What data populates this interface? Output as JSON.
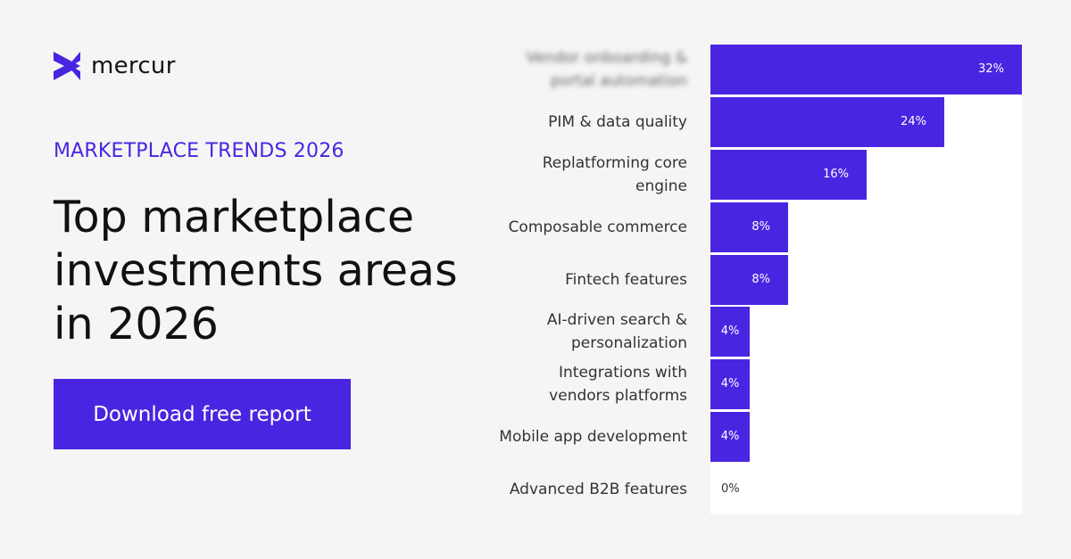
{
  "brand": {
    "name": "mercur",
    "accent": "#4a25e1"
  },
  "eyebrow": "MARKETPLACE TRENDS 2026",
  "headline": "Top marketplace investments areas in 2026",
  "cta": {
    "label": "Download free report"
  },
  "chart_data": {
    "type": "bar",
    "orientation": "horizontal",
    "categories": [
      "Vendor onboarding & portal automation",
      "PIM & data quality",
      "Replatforming core engine",
      "Composable commerce",
      "Fintech features",
      "AI-driven search & personalization",
      "Integrations with vendors platforms",
      "Mobile app development",
      "Advanced B2B features"
    ],
    "values": [
      32,
      24,
      16,
      8,
      8,
      4,
      4,
      4,
      0
    ],
    "labels": [
      "32%",
      "24%",
      "16%",
      "8%",
      "8%",
      "4%",
      "4%",
      "4%",
      "0%"
    ],
    "xlim": [
      0,
      32
    ],
    "unit": "%",
    "color": "#4a25e1",
    "grid": false,
    "legend": "none"
  }
}
